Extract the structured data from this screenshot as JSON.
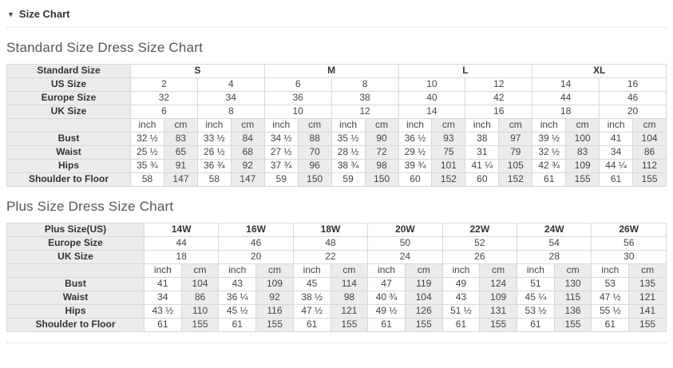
{
  "page": {
    "collapse_icon": "▼",
    "section_title": "Size Chart"
  },
  "colors": {
    "shaded_cell": "#ececec",
    "cell_border": "#d8d8d8",
    "heading_text": "#565656",
    "body_text": "#444444"
  },
  "tables": [
    {
      "name": "standard-size",
      "title": "Standard Size Dress Size Chart",
      "label_col_width": 155,
      "unit_cols": 16,
      "rows": [
        {
          "label": "Standard Size",
          "bold": true,
          "span": 4,
          "cells": [
            "S",
            "M",
            "L",
            "XL"
          ]
        },
        {
          "label": "US Size",
          "span": 2,
          "cells": [
            "2",
            "4",
            "6",
            "8",
            "10",
            "12",
            "14",
            "16"
          ]
        },
        {
          "label": "Europe Size",
          "span": 2,
          "cells": [
            "32",
            "34",
            "36",
            "38",
            "40",
            "42",
            "44",
            "46"
          ]
        },
        {
          "label": "UK Size",
          "span": 2,
          "cells": [
            "6",
            "8",
            "10",
            "12",
            "14",
            "16",
            "18",
            "20"
          ]
        },
        {
          "label": "",
          "span": 1,
          "cells": [
            "inch",
            "cm",
            "inch",
            "cm",
            "inch",
            "cm",
            "inch",
            "cm",
            "inch",
            "cm",
            "inch",
            "cm",
            "inch",
            "cm",
            "inch",
            "cm"
          ]
        },
        {
          "label": "Bust",
          "span": 1,
          "cells": [
            "32 ½",
            "83",
            "33 ½",
            "84",
            "34 ½",
            "88",
            "35 ½",
            "90",
            "36 ½",
            "93",
            "38",
            "97",
            "39 ½",
            "100",
            "41",
            "104"
          ]
        },
        {
          "label": "Waist",
          "span": 1,
          "cells": [
            "25 ½",
            "65",
            "26 ½",
            "68",
            "27 ½",
            "70",
            "28 ½",
            "72",
            "29 ½",
            "75",
            "31",
            "79",
            "32 ½",
            "83",
            "34",
            "86"
          ]
        },
        {
          "label": "Hips",
          "span": 1,
          "cells": [
            "35 ¾",
            "91",
            "36 ¾",
            "92",
            "37 ¾",
            "96",
            "38 ¾",
            "98",
            "39 ¾",
            "101",
            "41 ¼",
            "105",
            "42 ¾",
            "109",
            "44 ¼",
            "112"
          ]
        },
        {
          "label": "Shoulder to Floor",
          "span": 1,
          "cells": [
            "58",
            "147",
            "58",
            "147",
            "59",
            "150",
            "59",
            "150",
            "60",
            "152",
            "60",
            "152",
            "61",
            "155",
            "61",
            "155"
          ]
        }
      ]
    },
    {
      "name": "plus-size",
      "title": "Plus Size Dress Size Chart",
      "label_col_width": 172,
      "unit_cols": 14,
      "rows": [
        {
          "label": "Plus Size(US)",
          "bold": true,
          "span": 2,
          "cells": [
            "14W",
            "16W",
            "18W",
            "20W",
            "22W",
            "24W",
            "26W"
          ]
        },
        {
          "label": "Europe Size",
          "span": 2,
          "cells": [
            "44",
            "46",
            "48",
            "50",
            "52",
            "54",
            "56"
          ]
        },
        {
          "label": "UK Size",
          "span": 2,
          "cells": [
            "18",
            "20",
            "22",
            "24",
            "26",
            "28",
            "30"
          ]
        },
        {
          "label": "",
          "span": 1,
          "cells": [
            "inch",
            "cm",
            "inch",
            "cm",
            "inch",
            "cm",
            "inch",
            "cm",
            "inch",
            "cm",
            "inch",
            "cm",
            "inch",
            "cm"
          ]
        },
        {
          "label": "Bust",
          "span": 1,
          "cells": [
            "41",
            "104",
            "43",
            "109",
            "45",
            "114",
            "47",
            "119",
            "49",
            "124",
            "51",
            "130",
            "53",
            "135"
          ]
        },
        {
          "label": "Waist",
          "span": 1,
          "cells": [
            "34",
            "86",
            "36 ¼",
            "92",
            "38 ½",
            "98",
            "40 ¾",
            "104",
            "43",
            "109",
            "45 ¼",
            "115",
            "47 ½",
            "121"
          ]
        },
        {
          "label": "Hips",
          "span": 1,
          "cells": [
            "43 ½",
            "110",
            "45 ½",
            "116",
            "47 ½",
            "121",
            "49 ½",
            "126",
            "51 ½",
            "131",
            "53 ½",
            "136",
            "55 ½",
            "141"
          ]
        },
        {
          "label": "Shoulder to Floor",
          "span": 1,
          "cells": [
            "61",
            "155",
            "61",
            "155",
            "61",
            "155",
            "61",
            "155",
            "61",
            "155",
            "61",
            "155",
            "61",
            "155"
          ]
        }
      ]
    }
  ]
}
